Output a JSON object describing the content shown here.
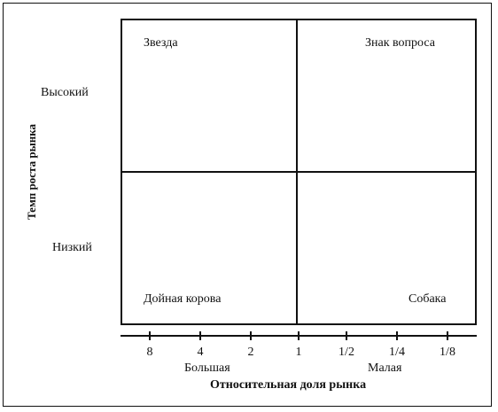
{
  "quadrants": {
    "star": "Звезда",
    "question": "Знак вопроса",
    "cash_cow": "Дойная корова",
    "dog": "Собака"
  },
  "y_axis": {
    "title": "Темп роста рынка",
    "high": "Высокий",
    "low": "Низкий"
  },
  "x_axis": {
    "title": "Относительная доля рынка",
    "big": "Большая",
    "small": "Малая",
    "ticks": [
      "8",
      "4",
      "2",
      "1",
      "1/2",
      "1/4",
      "1/8"
    ]
  }
}
